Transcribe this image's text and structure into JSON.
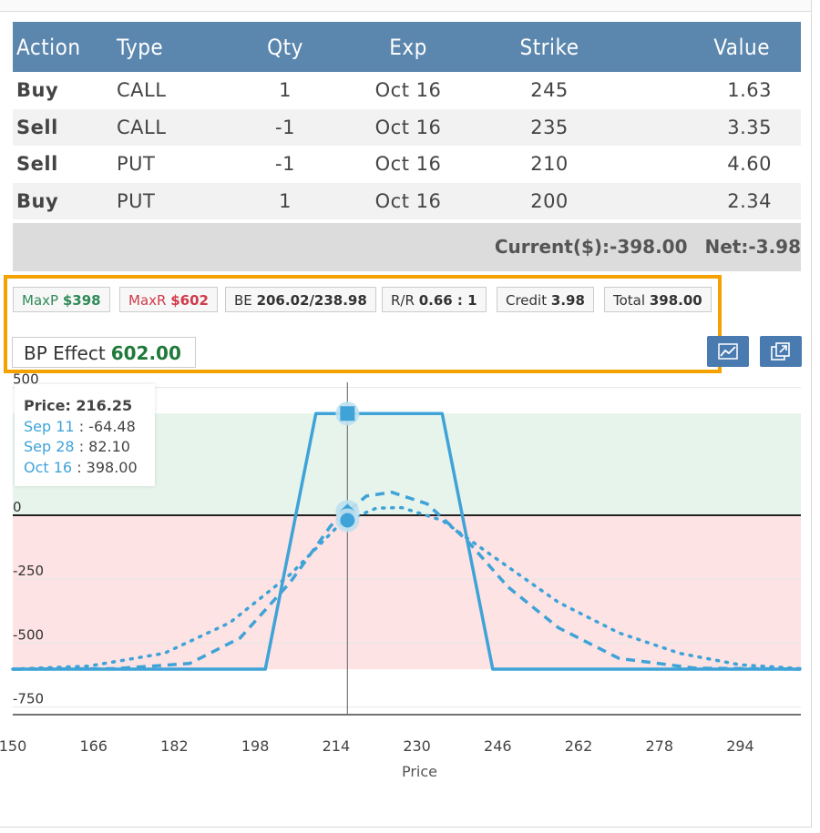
{
  "table": {
    "headers": [
      "Action",
      "Type",
      "Qty",
      "Exp",
      "Strike",
      "Value"
    ],
    "rows": [
      {
        "action": "Buy",
        "type": "CALL",
        "qty": "1",
        "exp": "Oct 16",
        "strike": "245",
        "value": "1.63"
      },
      {
        "action": "Sell",
        "type": "CALL",
        "qty": "-1",
        "exp": "Oct 16",
        "strike": "235",
        "value": "3.35"
      },
      {
        "action": "Sell",
        "type": "PUT",
        "qty": "-1",
        "exp": "Oct 16",
        "strike": "210",
        "value": "4.60"
      },
      {
        "action": "Buy",
        "type": "PUT",
        "qty": "1",
        "exp": "Oct 16",
        "strike": "200",
        "value": "2.34"
      }
    ],
    "current": "Current($):-398.00",
    "net": "Net:-3.98"
  },
  "stats": {
    "maxp_label": "MaxP",
    "maxp_value": "$398",
    "maxr_label": "MaxR",
    "maxr_value": "$602",
    "be_label": "BE",
    "be_value": "206.02/238.98",
    "rr_label": "R/R",
    "rr_value": "0.66 : 1",
    "credit_label": "Credit",
    "credit_value": "3.98",
    "total_label": "Total",
    "total_value": "398.00",
    "bp_label": "BP Effect",
    "bp_value": "602.00"
  },
  "icons": {
    "chart_button": "line-chart-icon",
    "popout_button": "popout-icon"
  },
  "colors": {
    "header": "#5b86ad",
    "buy": "#1f7a3a",
    "sell": "#c0392b",
    "highlight": "#f5a200",
    "series": "#3fa3d8",
    "profit_zone": "#e6f4ec",
    "loss_zone": "#fde3e3"
  },
  "tooltip": {
    "price_label": "Price: 216.25",
    "items": [
      {
        "date": "Sep 11",
        "value": ": -64.48"
      },
      {
        "date": "Sep 28",
        "value": ": 82.10"
      },
      {
        "date": "Oct 16",
        "value": ": 398.00"
      }
    ]
  },
  "chart_data": {
    "type": "line",
    "xlabel": "Price",
    "ylabel": "",
    "xlim": [
      150,
      306
    ],
    "ylim": [
      -780,
      520
    ],
    "x_ticks": [
      150,
      166,
      182,
      198,
      214,
      230,
      246,
      262,
      278,
      294
    ],
    "y_ticks": [
      500,
      0,
      -250,
      -500,
      -750
    ],
    "y_tick_labels": [
      "500",
      "0",
      "-250",
      "-500",
      "-750"
    ],
    "cursor_x": 216.25,
    "profit_zone": [
      0,
      398
    ],
    "loss_zone": [
      -602,
      0
    ],
    "series": [
      {
        "style": "solid",
        "points": [
          [
            150,
            -602
          ],
          [
            200,
            -602
          ],
          [
            210,
            398
          ],
          [
            235,
            398
          ],
          [
            245,
            -602
          ],
          [
            306,
            -602
          ]
        ]
      },
      {
        "style": "dashed",
        "points": [
          [
            150,
            -602
          ],
          [
            170,
            -600
          ],
          [
            185,
            -580
          ],
          [
            195,
            -480
          ],
          [
            205,
            -260
          ],
          [
            213,
            -40
          ],
          [
            220,
            75
          ],
          [
            225,
            90
          ],
          [
            232,
            45
          ],
          [
            240,
            -100
          ],
          [
            248,
            -280
          ],
          [
            258,
            -440
          ],
          [
            270,
            -560
          ],
          [
            285,
            -598
          ],
          [
            306,
            -602
          ]
        ]
      },
      {
        "style": "dotted",
        "points": [
          [
            150,
            -602
          ],
          [
            165,
            -590
          ],
          [
            180,
            -540
          ],
          [
            193,
            -420
          ],
          [
            205,
            -230
          ],
          [
            215,
            -30
          ],
          [
            222,
            28
          ],
          [
            227,
            30
          ],
          [
            235,
            -20
          ],
          [
            245,
            -160
          ],
          [
            258,
            -340
          ],
          [
            270,
            -460
          ],
          [
            282,
            -540
          ],
          [
            294,
            -585
          ],
          [
            306,
            -600
          ]
        ]
      }
    ]
  }
}
